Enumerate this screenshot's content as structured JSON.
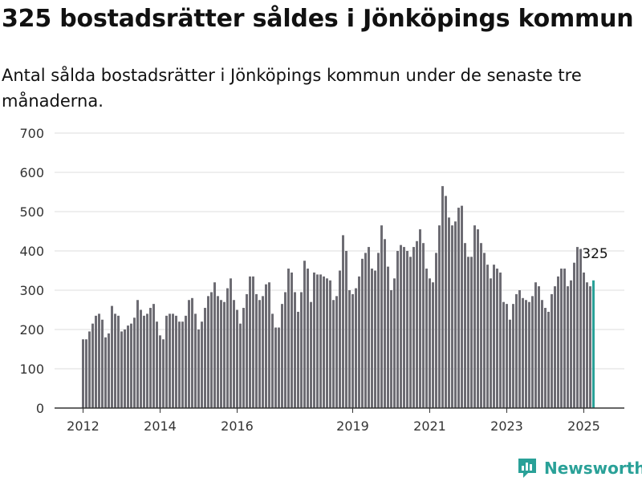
{
  "header": {
    "title": "325 bostadsrätter såldes i Jönköpings kommun",
    "subtitle": "Antal sålda bostadsrätter i Jönköpings kommun under de senaste tre månaderna."
  },
  "brand": {
    "name": "Newsworthy"
  },
  "colors": {
    "bar": "#6d6c73",
    "highlight": "#2aa198",
    "grid": "#dddddd",
    "axis": "#333333"
  },
  "chart_data": {
    "type": "bar",
    "title": "325 bostadsrätter såldes i Jönköpings kommun",
    "subtitle": "Antal sålda bostadsrätter i Jönköpings kommun under de senaste tre månaderna.",
    "xlabel": "",
    "ylabel": "",
    "ylim": [
      0,
      700
    ],
    "yticks": [
      0,
      100,
      200,
      300,
      400,
      500,
      600,
      700
    ],
    "grid": true,
    "x_tick_labels": [
      {
        "label": "2012",
        "index": 0
      },
      {
        "label": "2014",
        "index": 24
      },
      {
        "label": "2016",
        "index": 48
      },
      {
        "label": "2019",
        "index": 84
      },
      {
        "label": "2021",
        "index": 108
      },
      {
        "label": "2023",
        "index": 132
      },
      {
        "label": "2025",
        "index": 156
      }
    ],
    "start_label": "2012-01",
    "values": [
      175,
      175,
      195,
      215,
      235,
      240,
      225,
      180,
      190,
      260,
      240,
      235,
      195,
      200,
      210,
      215,
      230,
      275,
      250,
      235,
      240,
      255,
      265,
      220,
      185,
      175,
      235,
      240,
      240,
      235,
      220,
      220,
      235,
      275,
      280,
      240,
      200,
      220,
      255,
      285,
      295,
      320,
      285,
      275,
      270,
      305,
      330,
      275,
      250,
      215,
      255,
      290,
      335,
      335,
      290,
      275,
      285,
      315,
      320,
      240,
      205,
      205,
      265,
      295,
      355,
      345,
      295,
      245,
      295,
      375,
      355,
      270,
      345,
      340,
      340,
      335,
      330,
      325,
      275,
      285,
      350,
      440,
      400,
      300,
      290,
      305,
      335,
      380,
      395,
      410,
      355,
      350,
      395,
      465,
      430,
      360,
      300,
      330,
      400,
      415,
      410,
      400,
      385,
      410,
      425,
      455,
      420,
      355,
      330,
      320,
      395,
      465,
      565,
      540,
      485,
      465,
      475,
      510,
      515,
      420,
      385,
      385,
      465,
      455,
      420,
      395,
      365,
      330,
      365,
      355,
      345,
      270,
      265,
      225,
      265,
      290,
      300,
      280,
      275,
      270,
      285,
      320,
      310,
      275,
      255,
      245,
      290,
      310,
      335,
      355,
      355,
      310,
      325,
      370,
      410,
      405,
      345,
      320,
      310,
      325
    ],
    "highlight": {
      "index": 159,
      "value": 325,
      "label": "325"
    }
  }
}
